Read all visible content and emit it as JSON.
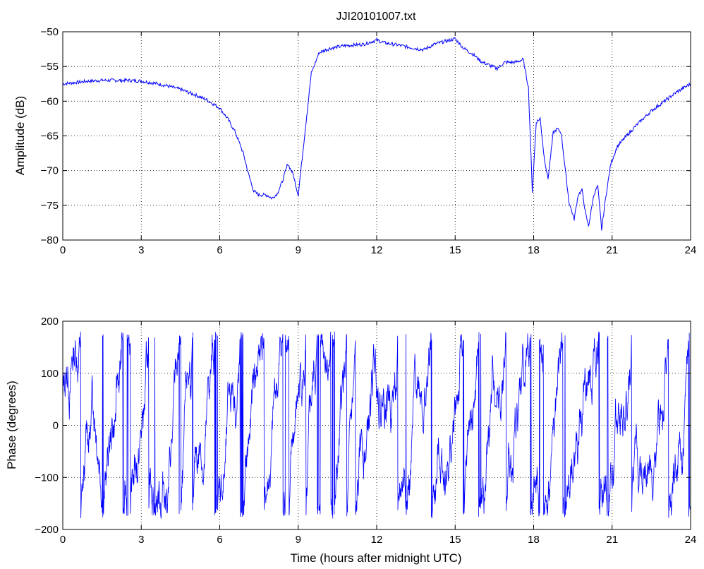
{
  "chart_data": [
    {
      "type": "line",
      "title": "JJI20101007.txt",
      "xlabel": "",
      "ylabel": "Amplitude (dB)",
      "xlim": [
        0,
        24
      ],
      "ylim": [
        -80,
        -50
      ],
      "xticks": [
        0,
        3,
        6,
        9,
        12,
        15,
        18,
        21,
        24
      ],
      "yticks": [
        -80,
        -75,
        -70,
        -65,
        -60,
        -55,
        -50
      ],
      "grid": true,
      "line_color": "#0000ff",
      "series": [
        {
          "x": [
            0,
            0.5,
            1,
            1.5,
            2,
            2.5,
            3,
            3.5,
            4,
            4.5,
            5,
            5.5,
            6,
            6.3,
            6.6,
            6.9,
            7.1,
            7.3,
            7.5,
            7.8,
            8.0,
            8.2,
            8.4,
            8.6,
            8.8,
            9.0,
            9.1,
            9.3,
            9.5,
            9.8,
            10.2,
            10.8,
            11.5,
            12.0,
            12.3,
            12.8,
            13.2,
            13.8,
            14.2,
            14.6,
            15.0,
            15.3,
            15.7,
            16.0,
            16.3,
            16.6,
            16.9,
            17.3,
            17.6,
            17.8,
            17.95,
            18.1,
            18.25,
            18.4,
            18.55,
            18.75,
            18.9,
            19.05,
            19.2,
            19.35,
            19.55,
            19.7,
            19.85,
            20.0,
            20.1,
            20.3,
            20.45,
            20.6,
            20.75,
            20.95,
            21.2,
            21.6,
            22.0,
            22.5,
            23.0,
            23.5,
            24.0
          ],
          "y": [
            -57.5,
            -57.3,
            -57.1,
            -57.0,
            -57.0,
            -57.0,
            -57.1,
            -57.4,
            -57.8,
            -58.3,
            -59.0,
            -59.8,
            -61.0,
            -62.5,
            -64.5,
            -67.5,
            -70.5,
            -73.0,
            -73.5,
            -73.5,
            -74.0,
            -73.3,
            -71.5,
            -69.0,
            -70.5,
            -73.5,
            -70.0,
            -63.0,
            -56.0,
            -53.0,
            -52.4,
            -52.0,
            -51.8,
            -51.2,
            -51.6,
            -51.9,
            -52.2,
            -52.6,
            -51.8,
            -51.4,
            -51.0,
            -52.3,
            -53.3,
            -54.3,
            -54.8,
            -55.3,
            -54.4,
            -54.4,
            -54.0,
            -58.0,
            -73.0,
            -63.0,
            -62.5,
            -68.0,
            -71.2,
            -64.5,
            -64.0,
            -64.5,
            -69.5,
            -74.5,
            -77.0,
            -73.5,
            -72.8,
            -76.5,
            -78.0,
            -73.5,
            -72.2,
            -78.5,
            -74.0,
            -69.0,
            -66.5,
            -64.8,
            -63.2,
            -61.4,
            -60.0,
            -58.6,
            -57.5
          ]
        }
      ]
    },
    {
      "type": "line",
      "title": "",
      "xlabel": "Time (hours after midnight UTC)",
      "ylabel": "Phase (degrees)",
      "xlim": [
        0,
        24
      ],
      "ylim": [
        -200,
        200
      ],
      "xticks": [
        0,
        3,
        6,
        9,
        12,
        15,
        18,
        21,
        24
      ],
      "yticks": [
        -200,
        -100,
        0,
        100,
        200
      ],
      "grid": true,
      "line_color": "#0000ff",
      "series": [
        {
          "note_values": "phase wraps rapidly between approximately -180 and 180 degrees throughout the day",
          "min": -180,
          "max": 180
        }
      ]
    }
  ]
}
